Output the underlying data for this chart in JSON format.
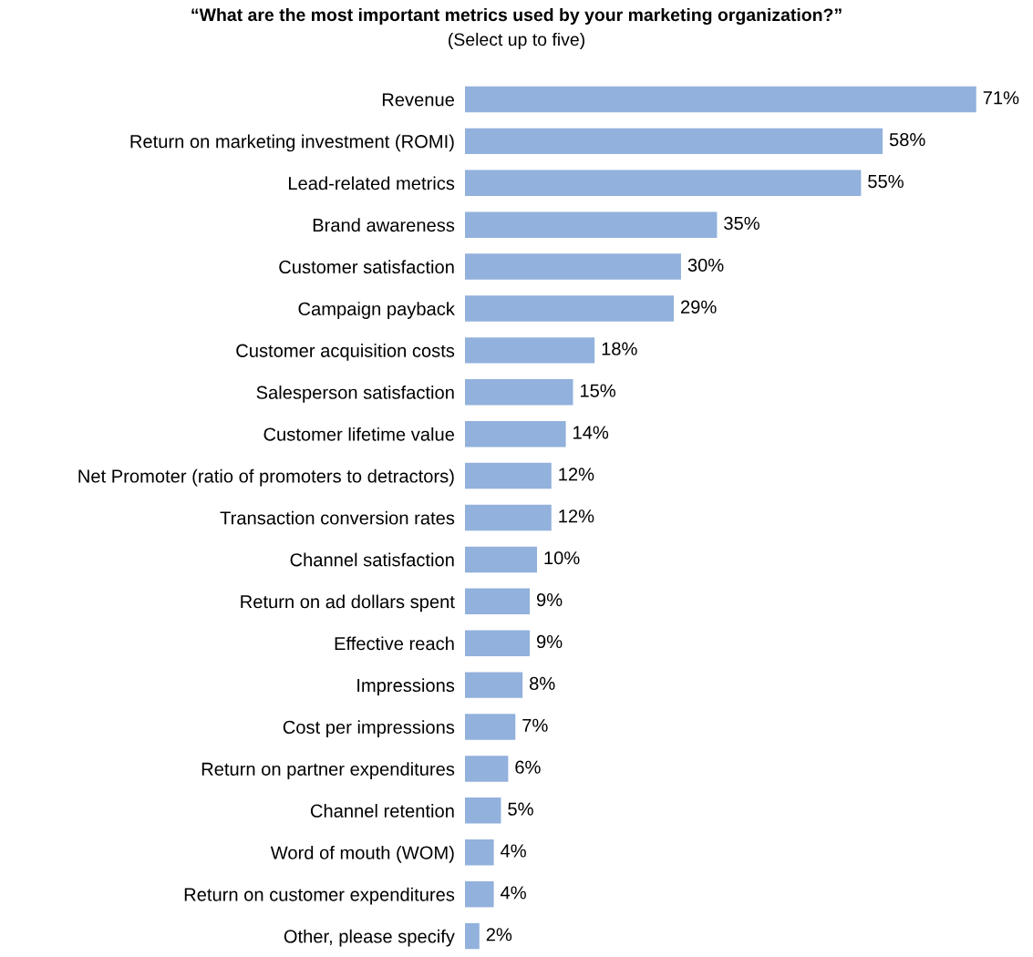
{
  "chart_data": {
    "type": "bar",
    "orientation": "horizontal",
    "title": "“What are the most important metrics used by your marketing organization?”",
    "subtitle": "(Select up to five)",
    "categories": [
      "Revenue",
      "Return on marketing investment (ROMI)",
      "Lead-related metrics",
      "Brand awareness",
      "Customer satisfaction",
      "Campaign payback",
      "Customer acquisition costs",
      "Salesperson satisfaction",
      "Customer lifetime value",
      "Net Promoter (ratio of promoters to detractors)",
      "Transaction conversion rates",
      "Channel satisfaction",
      "Return on ad dollars spent",
      "Effective reach",
      "Impressions",
      "Cost per impressions",
      "Return on partner expenditures",
      "Channel retention",
      "Word of mouth (WOM)",
      "Return on customer expenditures",
      "Other, please specify"
    ],
    "values": [
      71,
      58,
      55,
      35,
      30,
      29,
      18,
      15,
      14,
      12,
      12,
      10,
      9,
      9,
      8,
      7,
      6,
      5,
      4,
      4,
      2
    ],
    "value_labels": [
      "71%",
      "58%",
      "55%",
      "35%",
      "30%",
      "29%",
      "18%",
      "15%",
      "14%",
      "12%",
      "12%",
      "10%",
      "9%",
      "9%",
      "8%",
      "7%",
      "6%",
      "5%",
      "4%",
      "4%",
      "2%"
    ],
    "color": "#92b1dc",
    "grid": false,
    "legend": false
  }
}
